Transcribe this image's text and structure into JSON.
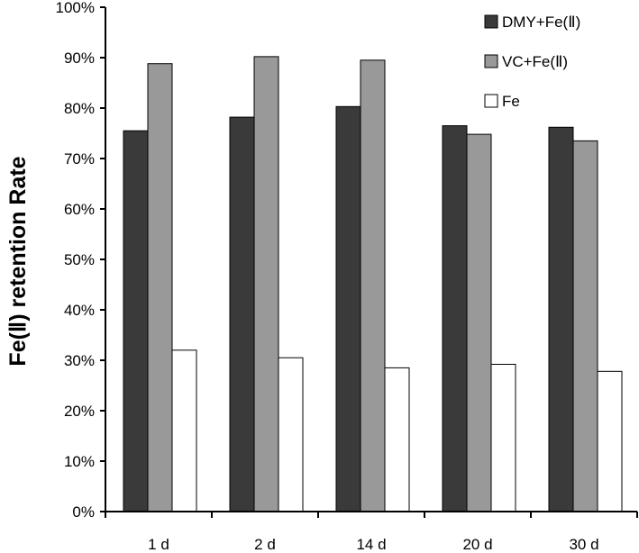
{
  "chart_data": {
    "type": "bar",
    "title": "",
    "xlabel": "",
    "ylabel": "Fe(Ⅱ) retention Rate",
    "ylim": [
      0,
      100
    ],
    "yticks": [
      0,
      10,
      20,
      30,
      40,
      50,
      60,
      70,
      80,
      90,
      100
    ],
    "ytick_labels": [
      "0%",
      "10%",
      "20%",
      "30%",
      "40%",
      "50%",
      "60%",
      "70%",
      "80%",
      "90%",
      "100%"
    ],
    "categories": [
      "1 d",
      "2 d",
      "14 d",
      "20 d",
      "30 d"
    ],
    "grid": false,
    "legend_position": "top-right",
    "series": [
      {
        "name": "DMY+Fe(Ⅱ)",
        "color": "#3a3a3a",
        "values": [
          75.5,
          78.2,
          80.3,
          76.5,
          76.2
        ]
      },
      {
        "name": "VC+Fe(Ⅱ)",
        "color": "#999999",
        "values": [
          88.8,
          90.2,
          89.5,
          74.8,
          73.5
        ]
      },
      {
        "name": "Fe",
        "color": "#ffffff",
        "values": [
          32.0,
          30.5,
          28.5,
          29.2,
          27.8
        ]
      }
    ]
  }
}
